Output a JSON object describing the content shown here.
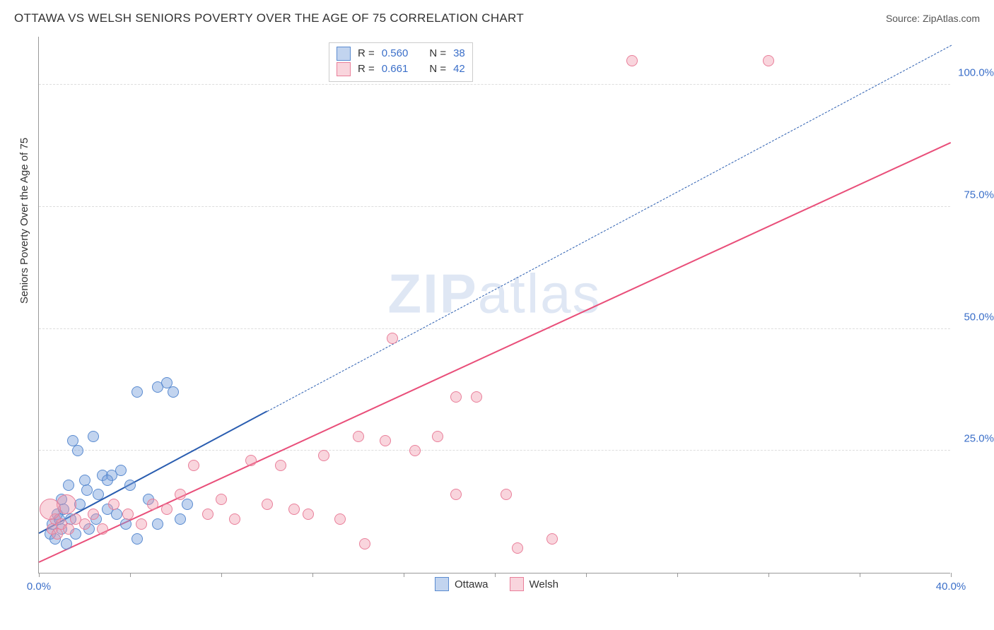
{
  "header": {
    "title": "OTTAWA VS WELSH SENIORS POVERTY OVER THE AGE OF 75 CORRELATION CHART",
    "source": "Source: ZipAtlas.com"
  },
  "watermark": {
    "zip": "ZIP",
    "atlas": "atlas"
  },
  "chart": {
    "type": "scatter",
    "ylabel": "Seniors Poverty Over the Age of 75",
    "background_color": "#ffffff",
    "grid_color": "#dddddd",
    "axis_color": "#999999",
    "tick_label_color": "#3b6fc9",
    "tick_fontsize": 15,
    "label_fontsize": 15,
    "title_fontsize": 17,
    "xlim": [
      0,
      40
    ],
    "ylim": [
      0,
      110
    ],
    "x_ticks": [
      0,
      4,
      8,
      12,
      16,
      20,
      24,
      28,
      32,
      36,
      40
    ],
    "x_tick_labels": {
      "0": "0.0%",
      "40": "40.0%"
    },
    "y_ticks": [
      25,
      50,
      75,
      100
    ],
    "y_tick_labels": {
      "25": "25.0%",
      "50": "50.0%",
      "75": "75.0%",
      "100": "100.0%"
    },
    "series": [
      {
        "name": "Ottawa",
        "fill_color": "rgba(120, 160, 220, 0.45)",
        "stroke_color": "#5a8bd0",
        "marker_size": 16,
        "reg_line_color": "#2a5db0",
        "reg_line_width": 2.5,
        "reg_solid": {
          "x1": 0,
          "y1": 8,
          "x2": 10,
          "y2": 33
        },
        "reg_dash": {
          "x1": 10,
          "y1": 33,
          "x2": 40,
          "y2": 108
        },
        "stats": {
          "R": "0.560",
          "N": "38"
        },
        "points": [
          {
            "x": 0.5,
            "y": 8
          },
          {
            "x": 0.6,
            "y": 10
          },
          {
            "x": 0.7,
            "y": 7
          },
          {
            "x": 0.8,
            "y": 12
          },
          {
            "x": 1.0,
            "y": 9
          },
          {
            "x": 1.0,
            "y": 15
          },
          {
            "x": 1.2,
            "y": 6
          },
          {
            "x": 1.3,
            "y": 18
          },
          {
            "x": 1.4,
            "y": 11
          },
          {
            "x": 1.5,
            "y": 27
          },
          {
            "x": 1.7,
            "y": 25
          },
          {
            "x": 1.8,
            "y": 14
          },
          {
            "x": 2.0,
            "y": 19
          },
          {
            "x": 2.2,
            "y": 9
          },
          {
            "x": 2.4,
            "y": 28
          },
          {
            "x": 2.6,
            "y": 16
          },
          {
            "x": 2.8,
            "y": 20
          },
          {
            "x": 3.0,
            "y": 13
          },
          {
            "x": 3.2,
            "y": 20
          },
          {
            "x": 3.4,
            "y": 12
          },
          {
            "x": 3.6,
            "y": 21
          },
          {
            "x": 3.8,
            "y": 10
          },
          {
            "x": 4.0,
            "y": 18
          },
          {
            "x": 4.3,
            "y": 7
          },
          {
            "x": 4.3,
            "y": 37
          },
          {
            "x": 4.8,
            "y": 15
          },
          {
            "x": 5.2,
            "y": 38
          },
          {
            "x": 5.2,
            "y": 10
          },
          {
            "x": 5.6,
            "y": 39
          },
          {
            "x": 5.9,
            "y": 37
          },
          {
            "x": 6.2,
            "y": 11
          },
          {
            "x": 6.5,
            "y": 14
          },
          {
            "x": 3.0,
            "y": 19
          },
          {
            "x": 2.1,
            "y": 17
          },
          {
            "x": 1.1,
            "y": 13
          },
          {
            "x": 1.6,
            "y": 8
          },
          {
            "x": 2.5,
            "y": 11
          },
          {
            "x": 0.9,
            "y": 11
          }
        ]
      },
      {
        "name": "Welsh",
        "fill_color": "rgba(240, 150, 170, 0.40)",
        "stroke_color": "#e97f9a",
        "marker_size": 16,
        "reg_line_color": "#e94f7a",
        "reg_line_width": 2.5,
        "reg_solid": {
          "x1": 0,
          "y1": 2,
          "x2": 40,
          "y2": 88
        },
        "stats": {
          "R": "0.661",
          "N": "42"
        },
        "points": [
          {
            "x": 0.6,
            "y": 9
          },
          {
            "x": 0.7,
            "y": 11
          },
          {
            "x": 0.8,
            "y": 8
          },
          {
            "x": 1.0,
            "y": 10
          },
          {
            "x": 1.3,
            "y": 9
          },
          {
            "x": 1.6,
            "y": 11
          },
          {
            "x": 2.0,
            "y": 10
          },
          {
            "x": 2.4,
            "y": 12
          },
          {
            "x": 2.8,
            "y": 9
          },
          {
            "x": 3.3,
            "y": 14
          },
          {
            "x": 3.9,
            "y": 12
          },
          {
            "x": 4.5,
            "y": 10
          },
          {
            "x": 5.0,
            "y": 14
          },
          {
            "x": 5.6,
            "y": 13
          },
          {
            "x": 6.2,
            "y": 16
          },
          {
            "x": 6.8,
            "y": 22
          },
          {
            "x": 7.4,
            "y": 12
          },
          {
            "x": 8.0,
            "y": 15
          },
          {
            "x": 8.6,
            "y": 11
          },
          {
            "x": 9.3,
            "y": 23
          },
          {
            "x": 10.0,
            "y": 14
          },
          {
            "x": 10.6,
            "y": 22
          },
          {
            "x": 11.2,
            "y": 13
          },
          {
            "x": 11.8,
            "y": 12
          },
          {
            "x": 12.5,
            "y": 24
          },
          {
            "x": 13.2,
            "y": 11
          },
          {
            "x": 14.0,
            "y": 28
          },
          {
            "x": 14.3,
            "y": 6
          },
          {
            "x": 15.2,
            "y": 27
          },
          {
            "x": 16.5,
            "y": 25
          },
          {
            "x": 15.5,
            "y": 48
          },
          {
            "x": 17.5,
            "y": 28
          },
          {
            "x": 18.3,
            "y": 16
          },
          {
            "x": 18.3,
            "y": 36
          },
          {
            "x": 19.2,
            "y": 36
          },
          {
            "x": 20.5,
            "y": 16
          },
          {
            "x": 21.0,
            "y": 5
          },
          {
            "x": 22.5,
            "y": 7
          },
          {
            "x": 26.0,
            "y": 105
          },
          {
            "x": 32.0,
            "y": 105
          },
          {
            "x": 1.2,
            "y": 14,
            "size": 28
          },
          {
            "x": 0.5,
            "y": 13,
            "size": 30
          }
        ]
      }
    ],
    "legend_bottom": [
      "Ottawa",
      "Welsh"
    ],
    "legend_stats": [
      {
        "series_index": 0,
        "label_R": "R =",
        "label_N": "N ="
      },
      {
        "series_index": 1,
        "label_R": "R =",
        "label_N": "N ="
      }
    ]
  }
}
